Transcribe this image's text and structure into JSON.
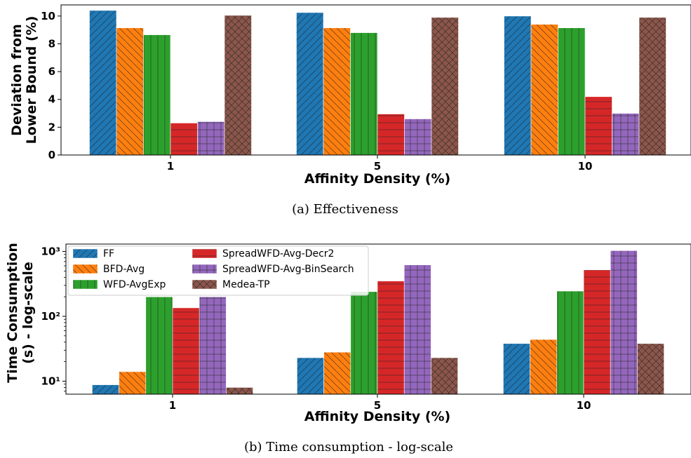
{
  "chart_data": [
    {
      "type": "bar",
      "caption": "(a) Effectiveness",
      "xlabel": "Affinity Density (%)",
      "ylabel": [
        "Deviation from",
        "Lower Bound (%)"
      ],
      "categories": [
        "1",
        "5",
        "10"
      ],
      "yscale": "linear",
      "ylim": [
        0,
        10.8
      ],
      "yticks": [
        "0",
        "2",
        "4",
        "6",
        "8",
        "10"
      ],
      "ytick_values": [
        0,
        2,
        4,
        6,
        8,
        10
      ],
      "series": [
        {
          "name": "FF",
          "values": [
            10.4,
            10.25,
            10.0
          ]
        },
        {
          "name": "BFD-Avg",
          "values": [
            9.15,
            9.15,
            9.4
          ]
        },
        {
          "name": "WFD-AvgExp",
          "values": [
            8.65,
            8.8,
            9.15
          ]
        },
        {
          "name": "SpreadWFD-Avg-Decr2",
          "values": [
            2.3,
            2.95,
            4.2
          ]
        },
        {
          "name": "SpreadWFD-Avg-BinSearch",
          "values": [
            2.4,
            2.6,
            3.0
          ]
        },
        {
          "name": "Medea-TP",
          "values": [
            10.05,
            9.9,
            9.9
          ]
        }
      ]
    },
    {
      "type": "bar",
      "caption": "(b) Time consumption - log-scale",
      "xlabel": "Affinity Density (%)",
      "ylabel": [
        "Time Consumption",
        "(s) - log-scale"
      ],
      "categories": [
        "1",
        "5",
        "10"
      ],
      "yscale": "log",
      "ylim": [
        6.3,
        1300
      ],
      "yticks": [
        "10¹",
        "10²",
        "10³"
      ],
      "ytick_values": [
        10,
        100,
        1000
      ],
      "legend_position": "upper-left",
      "series": [
        {
          "name": "FF",
          "values": [
            8.8,
            23,
            38
          ]
        },
        {
          "name": "BFD-Avg",
          "values": [
            14,
            28,
            44
          ]
        },
        {
          "name": "WFD-AvgExp",
          "values": [
            200,
            240,
            245
          ]
        },
        {
          "name": "SpreadWFD-Avg-Decr2",
          "values": [
            135,
            350,
            520
          ]
        },
        {
          "name": "SpreadWFD-Avg-BinSearch",
          "values": [
            200,
            620,
            1030
          ]
        },
        {
          "name": "Medea-TP",
          "values": [
            8.0,
            23,
            38
          ]
        }
      ]
    }
  ],
  "colors": [
    "#1f77b4",
    "#ff7f0e",
    "#2ca02c",
    "#d62728",
    "#9467bd",
    "#8c564b"
  ],
  "hatches": [
    "diag-fwd",
    "diag-back",
    "vertical",
    "horizontal",
    "grid",
    "cross"
  ]
}
